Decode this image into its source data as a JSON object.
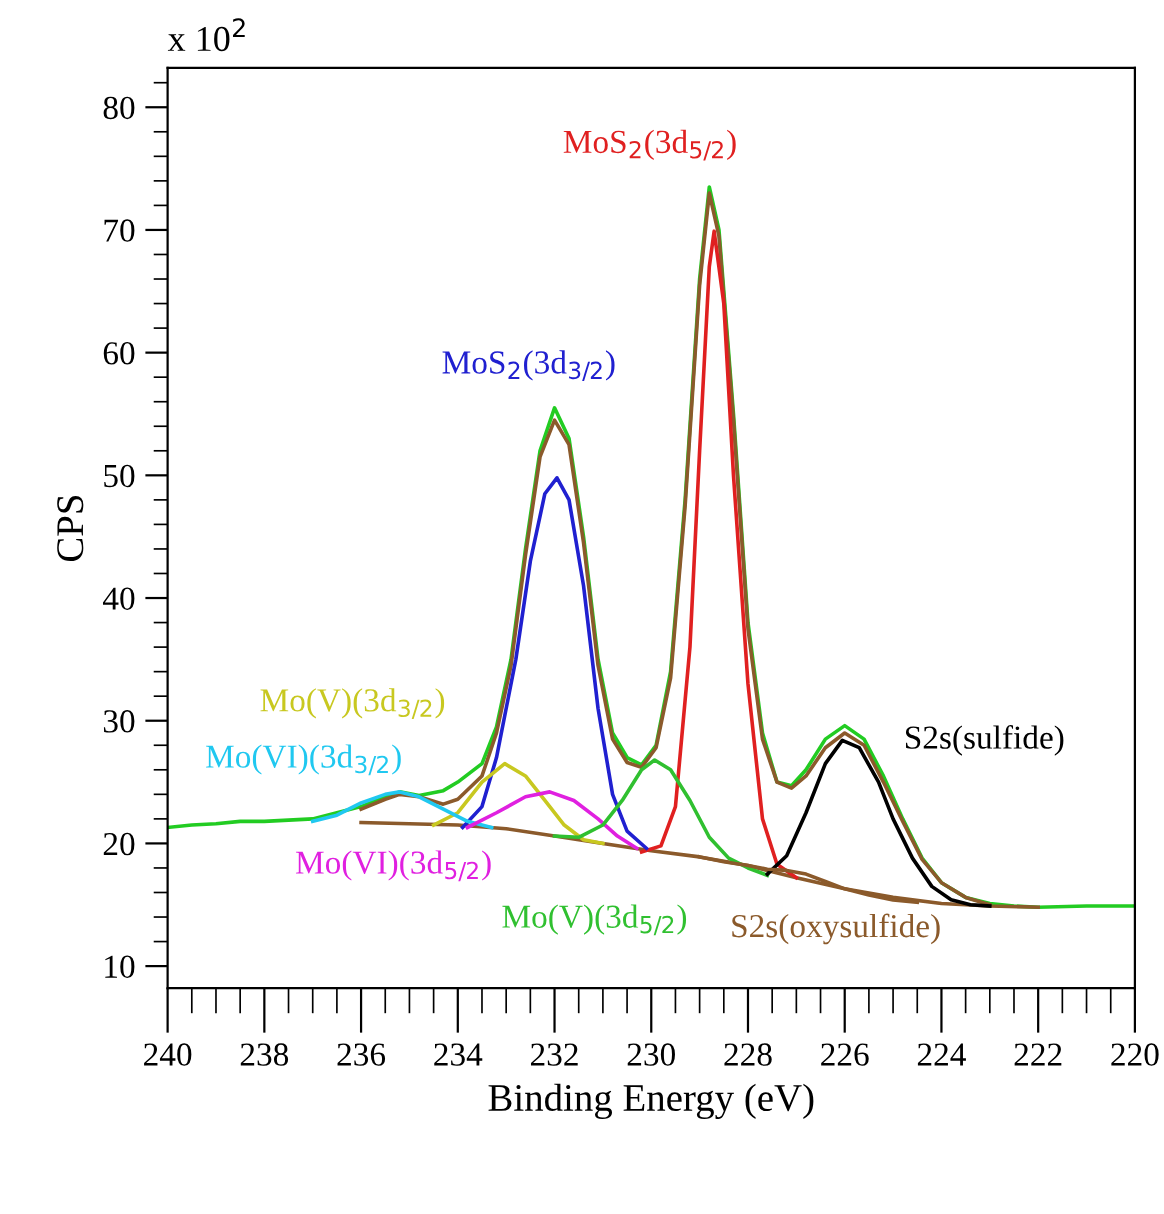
{
  "chart_data": {
    "type": "line",
    "xlabel": "Binding Energy (eV)",
    "ylabel": "CPS",
    "annotations": [
      "x 10$^{2}$"
    ],
    "xlim": [
      240,
      220
    ],
    "xticks": [
      240,
      238,
      236,
      234,
      232,
      230,
      228,
      226,
      224,
      222,
      220
    ],
    "ylim": [
      8.2,
      83.2
    ],
    "yticks": [
      10,
      20,
      30,
      40,
      50,
      60,
      70,
      80
    ],
    "grid": false,
    "legend": false,
    "marker": "none",
    "line_style": "solid",
    "series": [
      {
        "color": "#22cc22",
        "x": [
          240,
          239.5,
          239,
          238.5,
          238,
          237.5,
          237,
          236.5,
          236,
          235.5,
          235.2,
          234.8,
          234.3,
          234,
          233.5,
          233.2,
          232.9,
          232.6,
          232.3,
          232.0,
          231.7,
          231.4,
          231.1,
          230.8,
          230.5,
          230.2,
          229.9,
          229.6,
          229.3,
          229.0,
          228.8,
          228.6,
          228.3,
          228.0,
          227.7,
          227.4,
          227.1,
          226.8,
          226.4,
          226.0,
          225.6,
          225.2,
          224.8,
          224.4,
          224.0,
          223.5,
          223.0,
          222.5,
          222.0,
          221.0,
          220.0
        ],
        "values": [
          21.3,
          21.5,
          21.6,
          21.8,
          21.8,
          21.9,
          22.0,
          22.5,
          23.0,
          23.8,
          24.2,
          23.9,
          24.3,
          25.0,
          26.5,
          29.5,
          35,
          44,
          52,
          55.5,
          53,
          45,
          35,
          29,
          27,
          26.4,
          28,
          34,
          48,
          66,
          73.5,
          70,
          55,
          38,
          29,
          25,
          24.7,
          26,
          28.5,
          29.6,
          28.5,
          25.5,
          22,
          18.8,
          16.8,
          15.6,
          15.1,
          14.9,
          14.8,
          14.9,
          14.9
        ]
      },
      {
        "color": "#8b5a2b",
        "x": [
          236,
          235.5,
          235.2,
          234.8,
          234.3,
          234,
          233.5,
          233.2,
          232.9,
          232.6,
          232.3,
          232.0,
          231.7,
          231.4,
          231.1,
          230.8,
          230.5,
          230.2,
          229.9,
          229.6,
          229.3,
          229.0,
          228.8,
          228.6,
          228.3,
          228.0,
          227.7,
          227.4,
          227.1,
          226.8,
          226.4,
          226.0,
          225.6,
          225.2,
          224.8,
          224.4,
          224.0,
          223.5,
          223.0
        ],
        "values": [
          22.8,
          23.6,
          24.0,
          23.8,
          23.2,
          23.6,
          25.5,
          29,
          34.5,
          43.5,
          51.5,
          54.5,
          52.5,
          44.5,
          34.5,
          28.5,
          26.6,
          26.2,
          27.8,
          33.5,
          47.5,
          65.5,
          73.0,
          69.5,
          54.5,
          37.5,
          28.5,
          25,
          24.5,
          25.5,
          27.8,
          29.0,
          28.0,
          25.0,
          21.8,
          18.7,
          16.8,
          15.6,
          15.0
        ]
      },
      {
        "color": "#8b5a2b",
        "x": [
          236,
          235,
          234,
          233,
          232,
          231,
          230,
          229,
          228,
          227,
          226,
          225,
          224,
          223,
          222
        ],
        "values": [
          21.7,
          21.6,
          21.5,
          21.2,
          20.6,
          20.0,
          19.4,
          18.9,
          18.2,
          17.2,
          16.3,
          15.6,
          15.1,
          14.9,
          14.8
        ]
      },
      {
        "name": "MoS$_{2}$(3d$_{5/2}$)",
        "color": "#e02020",
        "x": [
          230.2,
          229.8,
          229.5,
          229.2,
          229.0,
          228.8,
          228.7,
          228.5,
          228.3,
          228.0,
          227.7,
          227.4,
          227.0
        ],
        "values": [
          19.3,
          19.8,
          23,
          36,
          52,
          67,
          69.9,
          64,
          50,
          33,
          22,
          18.3,
          17.2
        ]
      },
      {
        "name": "MoS$_{2}$(3d$_{3/2}$)",
        "color": "#2020d0",
        "x": [
          233.9,
          233.5,
          233.2,
          232.8,
          232.5,
          232.2,
          231.95,
          231.7,
          231.4,
          231.1,
          230.8,
          230.5,
          230.1
        ],
        "values": [
          21.3,
          23,
          27,
          35,
          43,
          48.5,
          49.8,
          48,
          41,
          31,
          24,
          21,
          19.6
        ]
      },
      {
        "name": "Mo(V)(3d$_{3/2}$)",
        "color": "#c8c820",
        "x": [
          234.5,
          234.0,
          233.5,
          233.03,
          232.6,
          232.2,
          231.8,
          231.4,
          231.0
        ],
        "values": [
          21.5,
          22.5,
          25,
          26.5,
          25.5,
          23.5,
          21.5,
          20.3,
          20.0
        ]
      },
      {
        "name": "Mo(VI)(3d$_{3/2}$)",
        "color": "#20c8f0",
        "x": [
          237.0,
          236.5,
          236.0,
          235.5,
          235.2,
          234.8,
          234.3,
          233.8,
          233.3
        ],
        "values": [
          21.8,
          22.3,
          23.3,
          24.0,
          24.2,
          23.8,
          22.8,
          21.8,
          21.3
        ]
      },
      {
        "name": "Mo(VI)(3d$_{5/2}$)",
        "color": "#e020e0",
        "x": [
          233.8,
          233.2,
          232.6,
          232.1,
          231.6,
          231.1,
          230.7,
          230.3
        ],
        "values": [
          21.3,
          22.5,
          23.8,
          24.2,
          23.5,
          22.0,
          20.6,
          19.6
        ]
      },
      {
        "name": "Mo(V)(3d$_{5/2}$)",
        "color": "#30c030",
        "x": [
          232.0,
          231.5,
          231.0,
          230.6,
          230.2,
          229.93,
          229.6,
          229.2,
          228.8,
          228.4,
          228.0,
          227.6
        ],
        "values": [
          20.6,
          20.5,
          21.5,
          23.5,
          26,
          26.8,
          26,
          23.5,
          20.5,
          18.8,
          18.0,
          17.4
        ]
      },
      {
        "name": "S2s(sulfide)",
        "color": "#000000",
        "x": [
          227.6,
          227.2,
          226.8,
          226.4,
          226.05,
          225.7,
          225.3,
          225.0,
          224.6,
          224.2,
          223.8,
          223.4,
          223.0
        ],
        "values": [
          17.5,
          19,
          22.5,
          26.5,
          28.4,
          27.8,
          25,
          22,
          18.8,
          16.5,
          15.4,
          15.0,
          14.9
        ]
      },
      {
        "name": "S2s(oxysulfide)",
        "color": "#8b5a2b",
        "x": [
          229.0,
          228.5,
          228.0,
          227.6,
          227.2,
          226.8,
          226.4,
          226.0,
          225.5,
          225.0,
          224.5
        ],
        "values": [
          18.9,
          18.5,
          18.2,
          17.9,
          17.8,
          17.5,
          16.9,
          16.3,
          15.8,
          15.4,
          15.2
        ]
      }
    ]
  }
}
